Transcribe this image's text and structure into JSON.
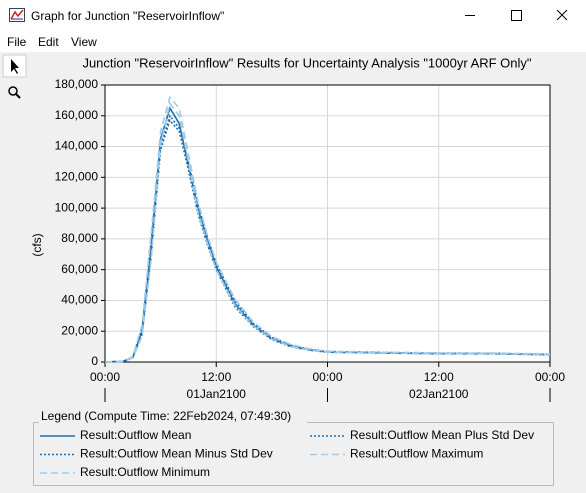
{
  "window": {
    "title": "Graph for Junction \"ReservoirInflow\"",
    "menu": [
      "File",
      "Edit",
      "View"
    ]
  },
  "chart_data": {
    "type": "line",
    "title": "Junction \"ReservoirInflow\" Results for Uncertainty Analysis \"1000yr ARF Only\"",
    "y_label": "(cfs)",
    "legend_title": "Legend (Compute Time: 22Feb2024, 07:49:30)",
    "x": [
      0,
      2,
      3,
      4,
      5,
      6,
      7,
      8,
      9,
      10,
      11,
      12,
      14,
      16,
      18,
      20,
      22,
      24,
      30,
      36,
      42,
      48
    ],
    "xlim": [
      0,
      48
    ],
    "xticks": [
      {
        "value": 0,
        "label": "00:00"
      },
      {
        "value": 12,
        "label": "12:00"
      },
      {
        "value": 24,
        "label": "00:00"
      },
      {
        "value": 36,
        "label": "12:00"
      },
      {
        "value": 48,
        "label": "00:00"
      }
    ],
    "date_labels": [
      {
        "value": 12,
        "label": "01Jan2100"
      },
      {
        "value": 36,
        "label": "02Jan2100"
      }
    ],
    "ylim": [
      0,
      180000
    ],
    "yticks": [
      0,
      {
        "value": 20000,
        "label": "20,000"
      },
      {
        "value": 40000,
        "label": "40,000"
      },
      {
        "value": 60000,
        "label": "60,000"
      },
      {
        "value": 80000,
        "label": "80,000"
      },
      {
        "value": 100000,
        "label": "100,000"
      },
      {
        "value": 120000,
        "label": "120,000"
      },
      {
        "value": 140000,
        "label": "140,000"
      },
      {
        "value": 160000,
        "label": "160,000"
      },
      {
        "value": 180000,
        "label": "180,000"
      }
    ],
    "grid": true,
    "series": [
      {
        "name": "Result:Outflow Mean",
        "color": "#1f6fb0",
        "dash": "solid",
        "values": [
          0,
          500,
          3000,
          20000,
          75000,
          145000,
          165000,
          155000,
          128000,
          100000,
          80000,
          62000,
          38000,
          24000,
          15000,
          10500,
          8000,
          6500,
          6000,
          5500,
          5500,
          4800
        ]
      },
      {
        "name": "Result:Outflow Mean Plus Std Dev",
        "color": "#1f6fb0",
        "dash": "dotted",
        "values": [
          0,
          500,
          3200,
          22000,
          80000,
          140000,
          160000,
          152000,
          130000,
          103000,
          82000,
          64000,
          40000,
          25000,
          16000,
          11000,
          8300,
          6800,
          6200,
          5700,
          5600,
          5000
        ]
      },
      {
        "name": "Result:Outflow Mean Minus Std Dev",
        "color": "#1f6fb0",
        "dash": "dotted",
        "values": [
          0,
          400,
          2800,
          18000,
          70000,
          138000,
          157000,
          150000,
          125000,
          97000,
          77000,
          60000,
          36000,
          23000,
          14500,
          10000,
          7700,
          6300,
          5800,
          5300,
          5300,
          4600
        ]
      },
      {
        "name": "Result:Outflow Maximum",
        "color": "#9fcbe8",
        "dash": "dashed",
        "values": [
          0,
          600,
          3500,
          24000,
          85000,
          150000,
          172000,
          165000,
          135000,
          105000,
          83000,
          65000,
          41000,
          26000,
          16500,
          11500,
          8600,
          7000,
          6400,
          5900,
          5800,
          5200
        ]
      },
      {
        "name": "Result:Outflow Minimum",
        "color": "#9fcbe8",
        "dash": "dashed",
        "values": [
          0,
          400,
          2600,
          17000,
          68000,
          142000,
          168000,
          160000,
          130000,
          98000,
          78000,
          60000,
          37000,
          23500,
          14800,
          10200,
          7800,
          6400,
          5900,
          5400,
          5400,
          4700
        ]
      }
    ]
  }
}
